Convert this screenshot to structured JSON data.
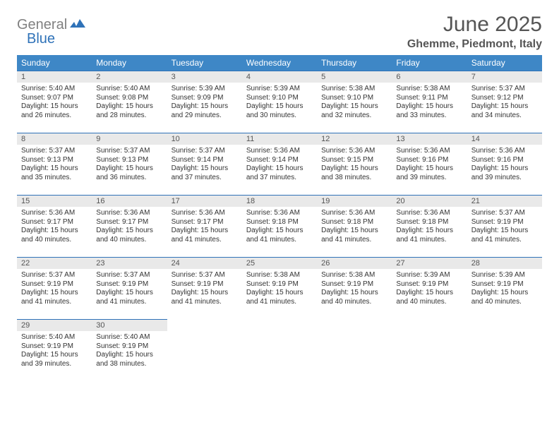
{
  "logo": {
    "gray": "General",
    "blue": "Blue"
  },
  "title": "June 2025",
  "location": "Ghemme, Piedmont, Italy",
  "colors": {
    "header_bg": "#3e87c6",
    "header_text": "#ffffff",
    "date_bg": "#e9e9e9",
    "date_border": "#2f72b8",
    "body_text": "#333333",
    "title_text": "#555555",
    "logo_gray": "#808080",
    "logo_blue": "#2f72b8"
  },
  "dayNames": [
    "Sunday",
    "Monday",
    "Tuesday",
    "Wednesday",
    "Thursday",
    "Friday",
    "Saturday"
  ],
  "weeks": [
    [
      {
        "date": "1",
        "sunrise": "Sunrise: 5:40 AM",
        "sunset": "Sunset: 9:07 PM",
        "day1": "Daylight: 15 hours",
        "day2": "and 26 minutes."
      },
      {
        "date": "2",
        "sunrise": "Sunrise: 5:40 AM",
        "sunset": "Sunset: 9:08 PM",
        "day1": "Daylight: 15 hours",
        "day2": "and 28 minutes."
      },
      {
        "date": "3",
        "sunrise": "Sunrise: 5:39 AM",
        "sunset": "Sunset: 9:09 PM",
        "day1": "Daylight: 15 hours",
        "day2": "and 29 minutes."
      },
      {
        "date": "4",
        "sunrise": "Sunrise: 5:39 AM",
        "sunset": "Sunset: 9:10 PM",
        "day1": "Daylight: 15 hours",
        "day2": "and 30 minutes."
      },
      {
        "date": "5",
        "sunrise": "Sunrise: 5:38 AM",
        "sunset": "Sunset: 9:10 PM",
        "day1": "Daylight: 15 hours",
        "day2": "and 32 minutes."
      },
      {
        "date": "6",
        "sunrise": "Sunrise: 5:38 AM",
        "sunset": "Sunset: 9:11 PM",
        "day1": "Daylight: 15 hours",
        "day2": "and 33 minutes."
      },
      {
        "date": "7",
        "sunrise": "Sunrise: 5:37 AM",
        "sunset": "Sunset: 9:12 PM",
        "day1": "Daylight: 15 hours",
        "day2": "and 34 minutes."
      }
    ],
    [
      {
        "date": "8",
        "sunrise": "Sunrise: 5:37 AM",
        "sunset": "Sunset: 9:13 PM",
        "day1": "Daylight: 15 hours",
        "day2": "and 35 minutes."
      },
      {
        "date": "9",
        "sunrise": "Sunrise: 5:37 AM",
        "sunset": "Sunset: 9:13 PM",
        "day1": "Daylight: 15 hours",
        "day2": "and 36 minutes."
      },
      {
        "date": "10",
        "sunrise": "Sunrise: 5:37 AM",
        "sunset": "Sunset: 9:14 PM",
        "day1": "Daylight: 15 hours",
        "day2": "and 37 minutes."
      },
      {
        "date": "11",
        "sunrise": "Sunrise: 5:36 AM",
        "sunset": "Sunset: 9:14 PM",
        "day1": "Daylight: 15 hours",
        "day2": "and 37 minutes."
      },
      {
        "date": "12",
        "sunrise": "Sunrise: 5:36 AM",
        "sunset": "Sunset: 9:15 PM",
        "day1": "Daylight: 15 hours",
        "day2": "and 38 minutes."
      },
      {
        "date": "13",
        "sunrise": "Sunrise: 5:36 AM",
        "sunset": "Sunset: 9:16 PM",
        "day1": "Daylight: 15 hours",
        "day2": "and 39 minutes."
      },
      {
        "date": "14",
        "sunrise": "Sunrise: 5:36 AM",
        "sunset": "Sunset: 9:16 PM",
        "day1": "Daylight: 15 hours",
        "day2": "and 39 minutes."
      }
    ],
    [
      {
        "date": "15",
        "sunrise": "Sunrise: 5:36 AM",
        "sunset": "Sunset: 9:17 PM",
        "day1": "Daylight: 15 hours",
        "day2": "and 40 minutes."
      },
      {
        "date": "16",
        "sunrise": "Sunrise: 5:36 AM",
        "sunset": "Sunset: 9:17 PM",
        "day1": "Daylight: 15 hours",
        "day2": "and 40 minutes."
      },
      {
        "date": "17",
        "sunrise": "Sunrise: 5:36 AM",
        "sunset": "Sunset: 9:17 PM",
        "day1": "Daylight: 15 hours",
        "day2": "and 41 minutes."
      },
      {
        "date": "18",
        "sunrise": "Sunrise: 5:36 AM",
        "sunset": "Sunset: 9:18 PM",
        "day1": "Daylight: 15 hours",
        "day2": "and 41 minutes."
      },
      {
        "date": "19",
        "sunrise": "Sunrise: 5:36 AM",
        "sunset": "Sunset: 9:18 PM",
        "day1": "Daylight: 15 hours",
        "day2": "and 41 minutes."
      },
      {
        "date": "20",
        "sunrise": "Sunrise: 5:36 AM",
        "sunset": "Sunset: 9:18 PM",
        "day1": "Daylight: 15 hours",
        "day2": "and 41 minutes."
      },
      {
        "date": "21",
        "sunrise": "Sunrise: 5:37 AM",
        "sunset": "Sunset: 9:19 PM",
        "day1": "Daylight: 15 hours",
        "day2": "and 41 minutes."
      }
    ],
    [
      {
        "date": "22",
        "sunrise": "Sunrise: 5:37 AM",
        "sunset": "Sunset: 9:19 PM",
        "day1": "Daylight: 15 hours",
        "day2": "and 41 minutes."
      },
      {
        "date": "23",
        "sunrise": "Sunrise: 5:37 AM",
        "sunset": "Sunset: 9:19 PM",
        "day1": "Daylight: 15 hours",
        "day2": "and 41 minutes."
      },
      {
        "date": "24",
        "sunrise": "Sunrise: 5:37 AM",
        "sunset": "Sunset: 9:19 PM",
        "day1": "Daylight: 15 hours",
        "day2": "and 41 minutes."
      },
      {
        "date": "25",
        "sunrise": "Sunrise: 5:38 AM",
        "sunset": "Sunset: 9:19 PM",
        "day1": "Daylight: 15 hours",
        "day2": "and 41 minutes."
      },
      {
        "date": "26",
        "sunrise": "Sunrise: 5:38 AM",
        "sunset": "Sunset: 9:19 PM",
        "day1": "Daylight: 15 hours",
        "day2": "and 40 minutes."
      },
      {
        "date": "27",
        "sunrise": "Sunrise: 5:39 AM",
        "sunset": "Sunset: 9:19 PM",
        "day1": "Daylight: 15 hours",
        "day2": "and 40 minutes."
      },
      {
        "date": "28",
        "sunrise": "Sunrise: 5:39 AM",
        "sunset": "Sunset: 9:19 PM",
        "day1": "Daylight: 15 hours",
        "day2": "and 40 minutes."
      }
    ],
    [
      {
        "date": "29",
        "sunrise": "Sunrise: 5:40 AM",
        "sunset": "Sunset: 9:19 PM",
        "day1": "Daylight: 15 hours",
        "day2": "and 39 minutes."
      },
      {
        "date": "30",
        "sunrise": "Sunrise: 5:40 AM",
        "sunset": "Sunset: 9:19 PM",
        "day1": "Daylight: 15 hours",
        "day2": "and 38 minutes."
      },
      {
        "empty": true
      },
      {
        "empty": true
      },
      {
        "empty": true
      },
      {
        "empty": true
      },
      {
        "empty": true
      }
    ]
  ]
}
